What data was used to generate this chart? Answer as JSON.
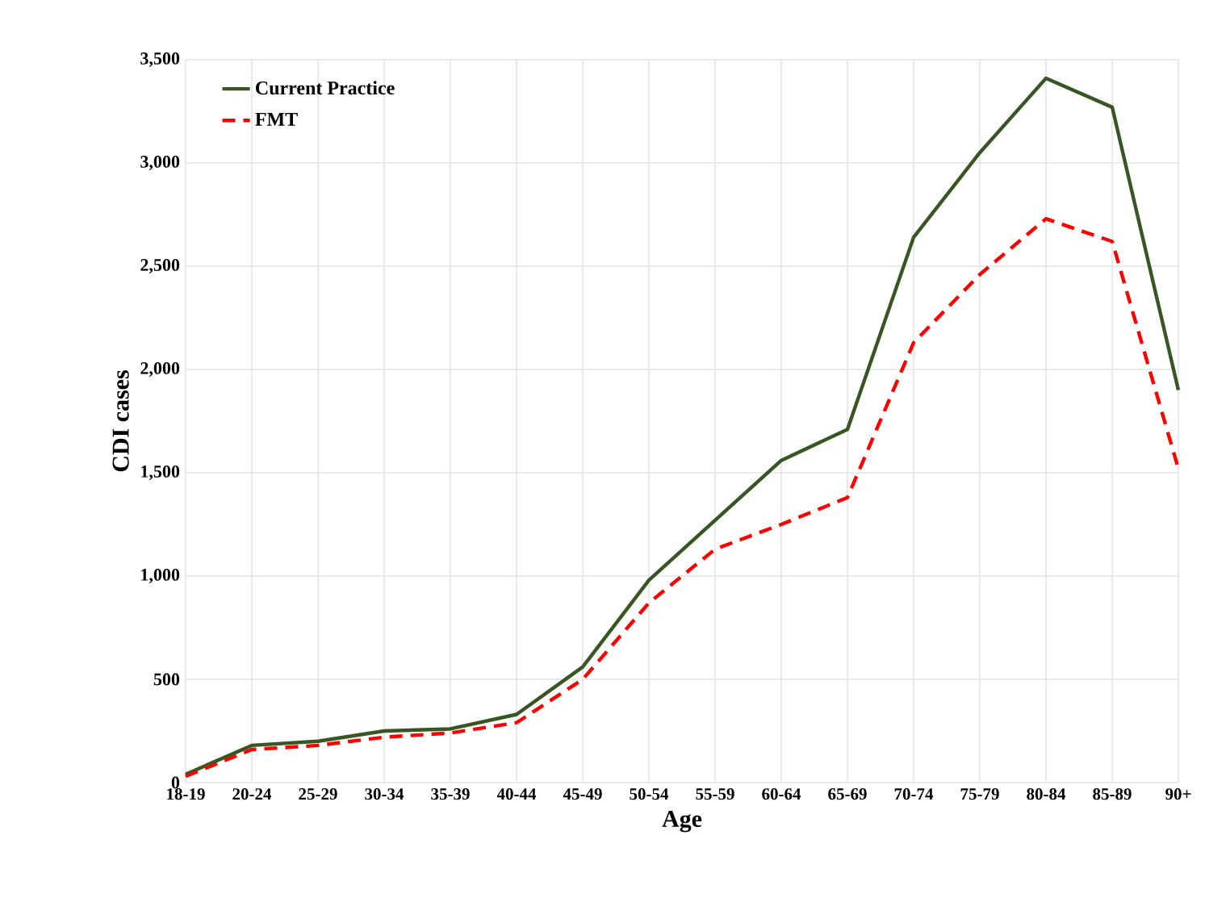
{
  "chart_data": {
    "type": "line",
    "xlabel": "Age",
    "ylabel": "CDI cases",
    "categories": [
      "18-19",
      "20-24",
      "25-29",
      "30-34",
      "35-39",
      "40-44",
      "45-49",
      "50-54",
      "55-59",
      "60-64",
      "65-69",
      "70-74",
      "75-79",
      "80-84",
      "85-89",
      "90+"
    ],
    "series": [
      {
        "name": "Current Practice",
        "color": "#375623",
        "line_style": "solid",
        "values": [
          40,
          180,
          200,
          250,
          260,
          330,
          560,
          980,
          1270,
          1560,
          1710,
          2640,
          3050,
          3410,
          3270,
          1900
        ]
      },
      {
        "name": "FMT",
        "color": "#ff0000",
        "line_style": "dashed",
        "values": [
          30,
          160,
          180,
          220,
          240,
          290,
          500,
          870,
          1130,
          1250,
          1380,
          2130,
          2460,
          2730,
          2620,
          1520
        ]
      }
    ],
    "ylim": [
      0,
      3500
    ],
    "yticks": [
      {
        "value": 0,
        "label": "0"
      },
      {
        "value": 500,
        "label": "500"
      },
      {
        "value": 1000,
        "label": "1,000"
      },
      {
        "value": 1500,
        "label": "1,500"
      },
      {
        "value": 2000,
        "label": "2,000"
      },
      {
        "value": 2500,
        "label": "2,500"
      },
      {
        "value": 3000,
        "label": "3,000"
      },
      {
        "value": 3500,
        "label": "3,500"
      }
    ],
    "grid": true,
    "legend": "top left",
    "marker": "none"
  }
}
